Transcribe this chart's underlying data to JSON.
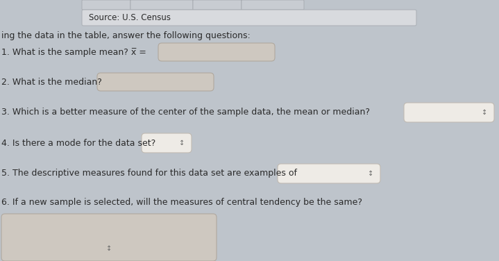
{
  "background_color": "#bec4cb",
  "source_box_color": "#d8dade",
  "source_box_border": "#adb2b8",
  "source_text": "Source: U.S. Census",
  "intro_text": "ing the data in the table, answer the following questions:",
  "q1_text": "1. What is the sample mean? x̅ =",
  "q2_text": "2. What is the median?",
  "q3_text": "3. Which is a better measure of the center of the sample data, the mean or median?",
  "q4_text": "4. Is there a mode for the data set?",
  "q5_text": "5. The descriptive measures found for this data set are examples of",
  "q6_text": "6. If a new sample is selected, will the measures of central tendency be the same?",
  "input_box_color": "#cec8c0",
  "input_box_edge": "#b0a89e",
  "dropdown_box_color": "#eeebe6",
  "dropdown_box_edge": "#c0bab2",
  "text_color": "#2a2a2a",
  "font_size": 9,
  "arrow_color": "#666666",
  "table_top_color": "#c8ccd2",
  "table_top_edge": "#a0a4aa"
}
